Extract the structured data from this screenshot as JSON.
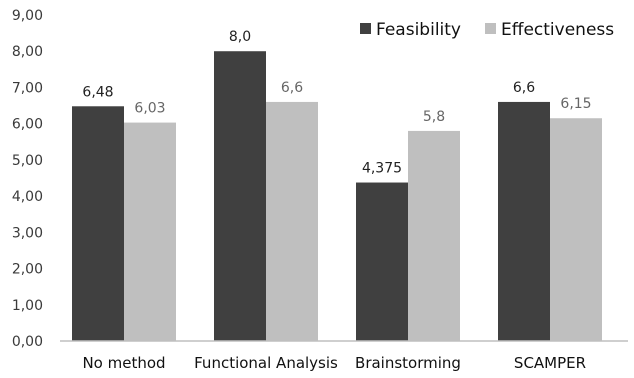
{
  "chart_data": {
    "type": "bar",
    "categories": [
      "No method",
      "Functional Analysis",
      "Brainstorming",
      "SCAMPER"
    ],
    "series": [
      {
        "name": "Feasibility",
        "values": [
          6.48,
          8.0,
          4.375,
          6.6
        ],
        "labels": [
          "6,48",
          "8,0",
          "4,375",
          "6,6"
        ],
        "color": "#404040"
      },
      {
        "name": "Effectiveness",
        "values": [
          6.03,
          6.6,
          5.8,
          6.15
        ],
        "labels": [
          "6,03",
          "6,6",
          "5,8",
          "6,15"
        ],
        "color": "#bfbfbf"
      }
    ],
    "yticks": [
      "0,00",
      "1,00",
      "2,00",
      "3,00",
      "4,00",
      "5,00",
      "6,00",
      "7,00",
      "8,00",
      "9,00"
    ],
    "ylim": [
      0,
      9
    ],
    "grid": false,
    "legend_position": "top-right",
    "axis_color": "#bfbfbf"
  }
}
